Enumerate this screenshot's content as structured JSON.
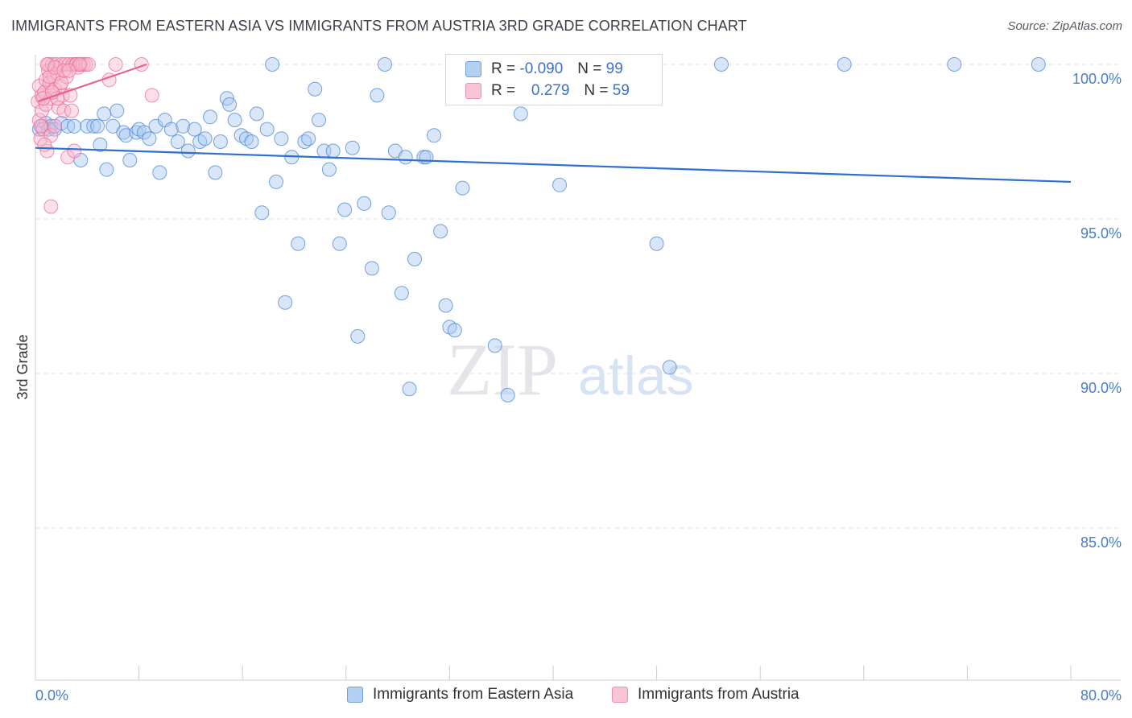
{
  "header": {
    "title": "IMMIGRANTS FROM EASTERN ASIA VS IMMIGRANTS FROM AUSTRIA 3RD GRADE CORRELATION CHART",
    "source": "Source: ZipAtlas.com"
  },
  "watermark": {
    "zip": "ZIP",
    "atlas": "atlas"
  },
  "legend": {
    "r_label": "R =",
    "n_label": "N =",
    "series": [
      {
        "r": "-0.090",
        "n": "99"
      },
      {
        "r": "0.279",
        "n": "59"
      }
    ]
  },
  "bottom_legend": [
    "Immigrants from Eastern Asia",
    "Immigrants from Austria"
  ],
  "colors": {
    "blue": "#4a86d8",
    "blue_fill": "#a8c8f0",
    "pink": "#ee6b98",
    "pink_fill": "#f7b9cf",
    "tick_text": "#4a7cc7"
  },
  "chart_data": {
    "type": "scatter",
    "ylabel": "3rd Grade",
    "xlim": [
      0,
      80
    ],
    "ylim": [
      80,
      101
    ],
    "x_ticks_labeled": [
      "0.0%",
      "80.0%"
    ],
    "y_ticks": [
      {
        "value": 100,
        "label": "100.0%"
      },
      {
        "value": 95,
        "label": "95.0%"
      },
      {
        "value": 90,
        "label": "90.0%"
      },
      {
        "value": 85,
        "label": "85.0%"
      }
    ],
    "x_tick_marks": [
      0,
      8,
      16,
      24,
      32,
      40,
      48,
      56,
      64,
      72,
      80
    ],
    "series": [
      {
        "name": "Immigrants from Eastern Asia",
        "trend": {
          "x": [
            0,
            80
          ],
          "y": [
            97.3,
            96.2
          ]
        },
        "points": [
          [
            0.3,
            97.9
          ],
          [
            0.5,
            98.0
          ],
          [
            0.8,
            98.1
          ],
          [
            1.0,
            97.9
          ],
          [
            1.2,
            98.0
          ],
          [
            1.5,
            97.9
          ],
          [
            2.0,
            98.1
          ],
          [
            2.5,
            98.0
          ],
          [
            3.0,
            98.0
          ],
          [
            3.5,
            96.9
          ],
          [
            4.0,
            98.0
          ],
          [
            4.5,
            98.0
          ],
          [
            4.8,
            98.0
          ],
          [
            5.0,
            97.4
          ],
          [
            5.3,
            98.4
          ],
          [
            5.5,
            96.6
          ],
          [
            6.0,
            98.0
          ],
          [
            6.3,
            98.5
          ],
          [
            6.8,
            97.8
          ],
          [
            7.0,
            97.7
          ],
          [
            7.3,
            96.9
          ],
          [
            7.8,
            97.8
          ],
          [
            8.0,
            97.9
          ],
          [
            8.4,
            97.8
          ],
          [
            8.8,
            97.6
          ],
          [
            9.3,
            98.0
          ],
          [
            9.6,
            96.5
          ],
          [
            10.0,
            98.2
          ],
          [
            10.5,
            97.9
          ],
          [
            11.0,
            97.5
          ],
          [
            11.4,
            98.0
          ],
          [
            11.8,
            97.2
          ],
          [
            12.3,
            97.9
          ],
          [
            12.7,
            97.5
          ],
          [
            13.1,
            97.6
          ],
          [
            13.5,
            98.3
          ],
          [
            13.9,
            96.5
          ],
          [
            14.3,
            97.5
          ],
          [
            14.8,
            98.9
          ],
          [
            15.0,
            98.7
          ],
          [
            15.4,
            98.2
          ],
          [
            15.9,
            97.7
          ],
          [
            16.3,
            97.6
          ],
          [
            16.7,
            97.5
          ],
          [
            17.1,
            98.4
          ],
          [
            17.5,
            95.2
          ],
          [
            17.9,
            97.9
          ],
          [
            18.3,
            100.0
          ],
          [
            18.6,
            96.2
          ],
          [
            19.0,
            97.6
          ],
          [
            19.3,
            92.3
          ],
          [
            19.8,
            97.0
          ],
          [
            20.3,
            94.2
          ],
          [
            20.8,
            97.5
          ],
          [
            21.1,
            97.6
          ],
          [
            21.6,
            99.2
          ],
          [
            21.9,
            98.2
          ],
          [
            22.3,
            97.2
          ],
          [
            22.7,
            96.6
          ],
          [
            23.0,
            97.2
          ],
          [
            23.5,
            94.2
          ],
          [
            23.9,
            95.3
          ],
          [
            24.5,
            97.3
          ],
          [
            24.9,
            91.2
          ],
          [
            25.4,
            95.5
          ],
          [
            26.0,
            93.4
          ],
          [
            26.4,
            99.0
          ],
          [
            27.0,
            100.0
          ],
          [
            27.3,
            95.2
          ],
          [
            27.8,
            97.2
          ],
          [
            28.3,
            92.6
          ],
          [
            28.6,
            97.0
          ],
          [
            28.9,
            89.5
          ],
          [
            29.3,
            93.7
          ],
          [
            30.0,
            97.0
          ],
          [
            30.2,
            97.0
          ],
          [
            30.8,
            97.7
          ],
          [
            31.3,
            94.6
          ],
          [
            31.7,
            92.2
          ],
          [
            32.0,
            91.5
          ],
          [
            32.4,
            91.4
          ],
          [
            33.0,
            96.0
          ],
          [
            35.5,
            90.9
          ],
          [
            36.0,
            100.0
          ],
          [
            36.5,
            89.3
          ],
          [
            37.5,
            98.4
          ],
          [
            38.5,
            100.0
          ],
          [
            40.5,
            96.1
          ],
          [
            43.0,
            100.0
          ],
          [
            48.0,
            94.2
          ],
          [
            49.0,
            90.2
          ],
          [
            53.0,
            100.0
          ],
          [
            62.5,
            100.0
          ],
          [
            71.0,
            100.0
          ],
          [
            77.5,
            100.0
          ]
        ]
      },
      {
        "name": "Immigrants from Austria",
        "trend": {
          "x": [
            0.2,
            8.6
          ],
          "y": [
            98.8,
            100.0
          ]
        },
        "points": [
          [
            0.2,
            98.8
          ],
          [
            0.3,
            99.3
          ],
          [
            0.3,
            98.2
          ],
          [
            0.4,
            97.6
          ],
          [
            0.5,
            99.0
          ],
          [
            0.5,
            98.5
          ],
          [
            0.6,
            97.9
          ],
          [
            0.7,
            99.1
          ],
          [
            0.8,
            99.5
          ],
          [
            0.8,
            98.7
          ],
          [
            0.9,
            97.2
          ],
          [
            1.0,
            100.0
          ],
          [
            1.0,
            99.8
          ],
          [
            1.1,
            99.4
          ],
          [
            1.2,
            98.9
          ],
          [
            1.2,
            97.7
          ],
          [
            1.3,
            100.0
          ],
          [
            1.4,
            99.6
          ],
          [
            1.5,
            99.2
          ],
          [
            1.5,
            98.0
          ],
          [
            1.6,
            100.0
          ],
          [
            1.7,
            99.7
          ],
          [
            1.8,
            98.6
          ],
          [
            1.9,
            99.3
          ],
          [
            2.0,
            100.0
          ],
          [
            2.1,
            99.0
          ],
          [
            2.2,
            98.5
          ],
          [
            2.3,
            100.0
          ],
          [
            2.4,
            99.6
          ],
          [
            2.5,
            97.0
          ],
          [
            2.6,
            100.0
          ],
          [
            2.7,
            99.0
          ],
          [
            2.8,
            98.5
          ],
          [
            2.9,
            100.0
          ],
          [
            3.0,
            97.2
          ],
          [
            3.1,
            100.0
          ],
          [
            3.2,
            100.0
          ],
          [
            3.3,
            99.9
          ],
          [
            3.5,
            100.0
          ],
          [
            3.7,
            100.0
          ],
          [
            3.9,
            100.0
          ],
          [
            4.1,
            100.0
          ],
          [
            1.2,
            95.4
          ],
          [
            5.7,
            99.5
          ],
          [
            6.2,
            100.0
          ],
          [
            8.2,
            100.0
          ],
          [
            9.0,
            99.0
          ],
          [
            0.6,
            98.9
          ],
          [
            1.1,
            99.6
          ],
          [
            0.9,
            100.0
          ],
          [
            1.5,
            99.9
          ],
          [
            2.0,
            99.4
          ],
          [
            0.4,
            98.0
          ],
          [
            1.7,
            98.9
          ],
          [
            2.2,
            99.8
          ],
          [
            3.4,
            100.0
          ],
          [
            0.7,
            97.4
          ],
          [
            1.3,
            99.1
          ],
          [
            2.6,
            99.8
          ]
        ]
      }
    ]
  }
}
